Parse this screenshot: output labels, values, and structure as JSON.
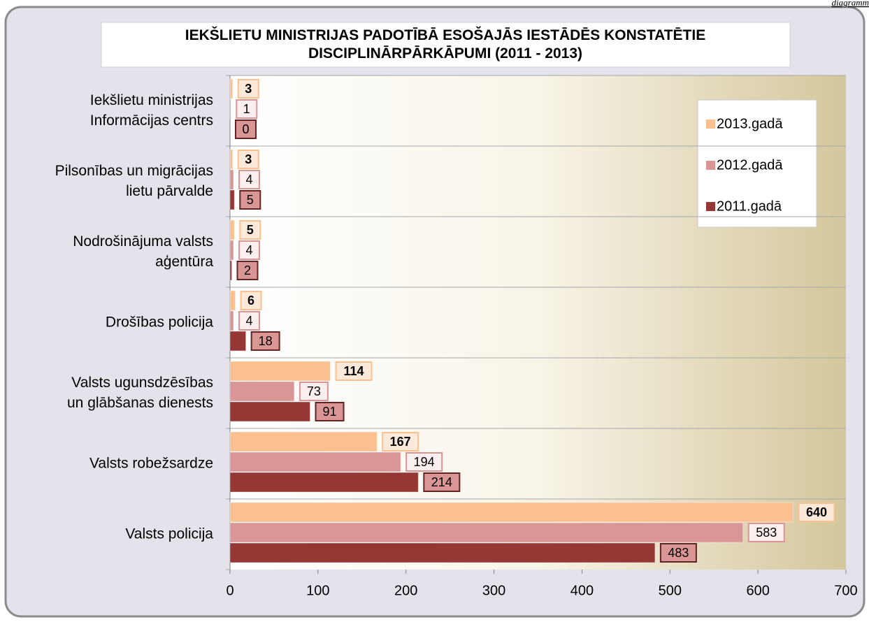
{
  "chart_data": {
    "type": "bar",
    "orientation": "horizontal",
    "title": "IEKŠLIETU MINISTRIJAS PADOTĪBĀ ESOŠAJĀS IESTĀDĒS KONSTATĒTIE\nDISCIPLINĀRPĀRKĀPUMI (2011 - 2013)",
    "annotation": "diagramm",
    "categories": [
      "Iekšlietu ministrijas\nInformācijas centrs",
      "Pilsonības un migrācijas\nlietu pārvalde",
      "Nodrošinājuma valsts\naģentūra",
      "Drošības policija",
      "Valsts ugunsdzēsības\nun glābšanas dienests",
      "Valsts robežsardze",
      "Valsts policija"
    ],
    "series": [
      {
        "name": "2013.gadā",
        "color": "#fac090",
        "values": [
          3,
          3,
          5,
          6,
          114,
          167,
          640
        ]
      },
      {
        "name": "2012.gadā",
        "color": "#d99694",
        "values": [
          1,
          4,
          4,
          4,
          73,
          194,
          583
        ]
      },
      {
        "name": "2011.gadā",
        "color": "#953735",
        "values": [
          0,
          5,
          2,
          18,
          91,
          214,
          483
        ]
      }
    ],
    "xlim": [
      0,
      700
    ],
    "xticks": [
      0,
      100,
      200,
      300,
      400,
      500,
      600,
      700
    ],
    "legend": "top-right"
  }
}
